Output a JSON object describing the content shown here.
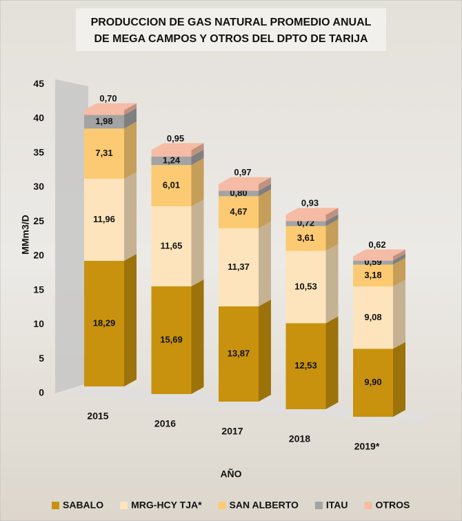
{
  "chart_data": {
    "type": "bar3d_stacked",
    "title": [
      "PRODUCCION DE GAS NATURAL PROMEDIO ANUAL",
      "DE MEGA CAMPOS Y OTROS DEL DPTO DE TARIJA"
    ],
    "y_label": "MMm3/D",
    "x_label": "AÑO",
    "categories": [
      "2015",
      "2016",
      "2017",
      "2018",
      "2019*"
    ],
    "ylim": [
      0,
      45
    ],
    "yticks": [
      0,
      5,
      10,
      15,
      20,
      25,
      30,
      35,
      40,
      45
    ],
    "legend": "bottom",
    "series": [
      {
        "name": "SABALO",
        "color": "#c8920e",
        "values": [
          18.29,
          15.69,
          13.87,
          12.53,
          9.9
        ],
        "value_labels": [
          "18,29",
          "15,69",
          "13,87",
          "12,53",
          "9,90"
        ]
      },
      {
        "name": "MRG-HCY TJA*",
        "color": "#fde4bc",
        "values": [
          11.96,
          11.65,
          11.37,
          10.53,
          9.08
        ],
        "value_labels": [
          "11,96",
          "11,65",
          "11,37",
          "10,53",
          "9,08"
        ]
      },
      {
        "name": "SAN ALBERTO",
        "color": "#fcca72",
        "values": [
          7.31,
          6.01,
          4.67,
          3.61,
          3.18
        ],
        "value_labels": [
          "7,31",
          "6,01",
          "4,67",
          "3,61",
          "3,18"
        ]
      },
      {
        "name": "ITAU",
        "color": "#a3a3a3",
        "values": [
          1.98,
          1.24,
          0.8,
          0.72,
          0.59
        ],
        "value_labels": [
          "1,98",
          "1,24",
          "0,80",
          "0,72",
          "0,59"
        ]
      },
      {
        "name": "OTROS",
        "color": "#f6bba4",
        "values": [
          0.7,
          0.95,
          0.97,
          0.93,
          0.62
        ],
        "value_labels": [
          "0,70",
          "0,95",
          "0,97",
          "0,93",
          "0,62"
        ]
      }
    ]
  }
}
